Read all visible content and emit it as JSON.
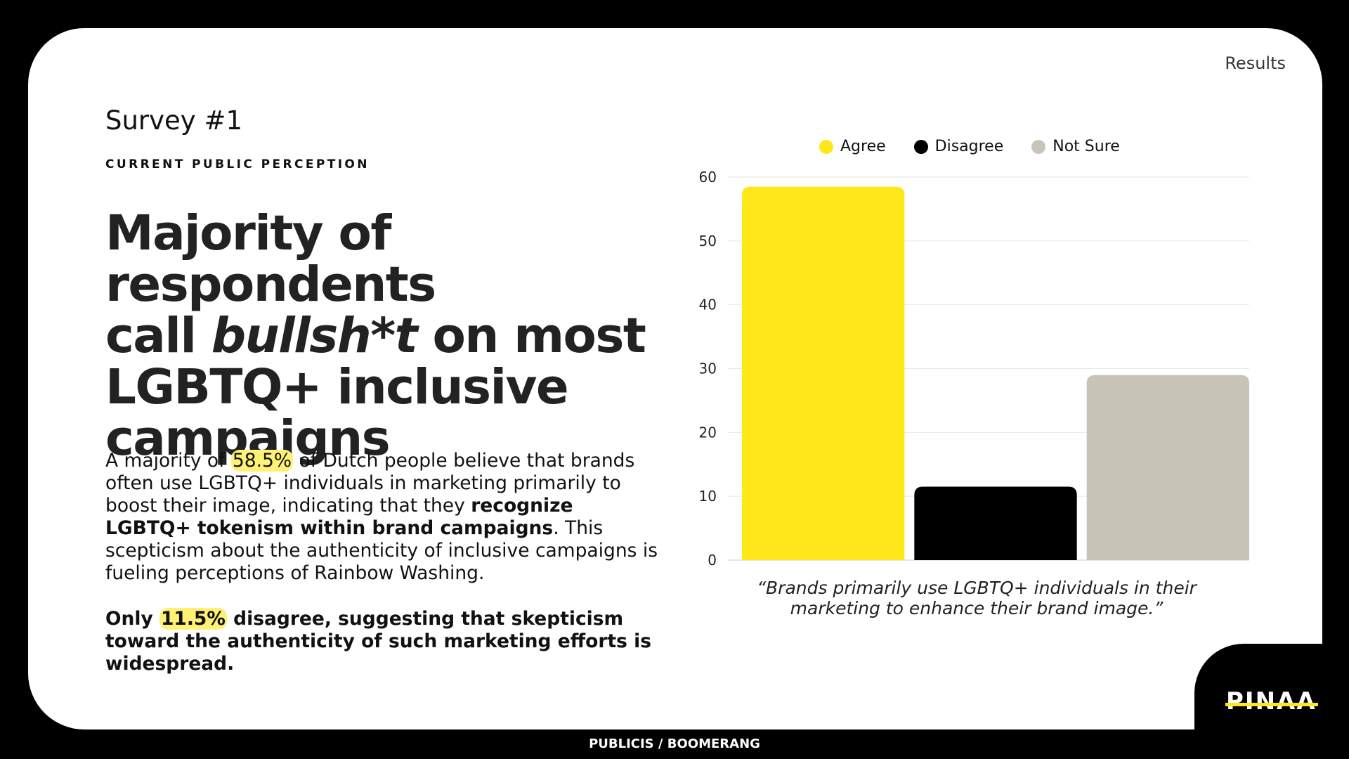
{
  "header": {
    "section": "Results",
    "survey": "Survey #1",
    "kicker": "CURRENT PUBLIC PERCEPTION"
  },
  "headline": {
    "line1": "Majority of respondents",
    "line2_pre": "call ",
    "line2_em": "bullsh*t",
    "line2_post": " on most",
    "line3": "LGBTQ+ inclusive",
    "line4": "campaigns"
  },
  "body": {
    "p1_a": "A majority of ",
    "p1_hl": "58.5%",
    "p1_b": " of Dutch people believe that brands often use LGBTQ+ individuals in marketing primarily to boost their image, indicating that they ",
    "p1_bold": "recognize LGBTQ+ tokenism within brand campaigns",
    "p1_c": ". This scepticism about the authenticity of inclusive campaigns is fueling perceptions of Rainbow Washing.",
    "p2_a": "Only ",
    "p2_hl": "11.5%",
    "p2_b": " disagree, suggesting that skepticism toward the authenticity of such marketing efforts is widespread."
  },
  "legend": [
    {
      "label": "Agree",
      "color": "#ffe81a"
    },
    {
      "label": "Disagree",
      "color": "#000000"
    },
    {
      "label": "Not Sure",
      "color": "#c9c4b8"
    }
  ],
  "chart_data": {
    "type": "bar",
    "categories": [
      "Agree",
      "Disagree",
      "Not Sure"
    ],
    "values": [
      58.5,
      11.5,
      29
    ],
    "colors": [
      "#ffe81a",
      "#000000",
      "#c9c4b8"
    ],
    "ylim": [
      0,
      60
    ],
    "yticks": [
      "0",
      "10",
      "20",
      "30",
      "40",
      "50",
      "60"
    ],
    "grid": true,
    "legend_position": "top"
  },
  "caption": "“Brands primarily use LGBTQ+ individuals in their marketing to enhance their brand image.”",
  "footer": "PUBLICIS / BOOMERANG",
  "logo": "PINAA"
}
